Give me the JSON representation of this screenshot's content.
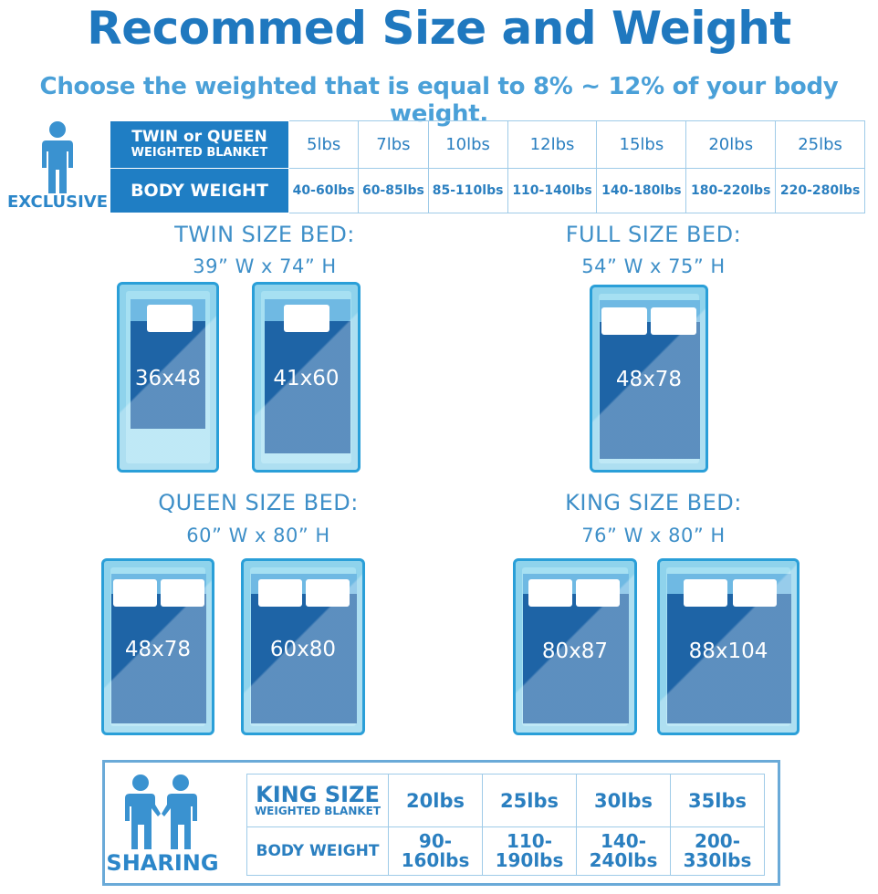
{
  "title": "Recommed Size and Weight",
  "subtitle": "Choose the weighted that is equal to 8% ~ 12% of your body weight.",
  "exclusive": {
    "label": "EXCLUSIVE",
    "header_line1": "TWIN or QUEEN",
    "header_line2": "WEIGHTED BLANKET",
    "body_weight_label": "BODY WEIGHT",
    "weights": [
      "5lbs",
      "7lbs",
      "10lbs",
      "12lbs",
      "15lbs",
      "20lbs",
      "25lbs"
    ],
    "body_weights": [
      "40-60lbs",
      "60-85lbs",
      "85-110lbs",
      "110-140lbs",
      "140-180lbs",
      "180-220lbs",
      "220-280lbs"
    ]
  },
  "beds": {
    "twin": {
      "heading": "TWIN SIZE BED:",
      "dimensions": "39”  W x 74”  H",
      "sizes": [
        "36x48",
        "41x60"
      ]
    },
    "full": {
      "heading": "FULL SIZE BED:",
      "dimensions": "54”  W x 75”  H",
      "sizes": [
        "48x78"
      ]
    },
    "queen": {
      "heading": "QUEEN SIZE BED:",
      "dimensions": "60”  W x 80”  H",
      "sizes": [
        "48x78",
        "60x80"
      ]
    },
    "king": {
      "heading": "KING SIZE BED:",
      "dimensions": "76”  W x 80”  H",
      "sizes": [
        "80x87",
        "88x104"
      ]
    }
  },
  "sharing": {
    "label": "SHARING",
    "header_line1": "KING SIZE",
    "header_line2": "WEIGHTED BLANKET",
    "body_weight_label": "BODY WEIGHT",
    "weights": [
      "20lbs",
      "25lbs",
      "30lbs",
      "35lbs"
    ],
    "body_weights": [
      [
        "90-",
        "160lbs"
      ],
      [
        "110-",
        "190lbs"
      ],
      [
        "140-",
        "240lbs"
      ],
      [
        "200-",
        "330lbs"
      ]
    ]
  },
  "colors": {
    "primary": "#1f78bf",
    "header_fill": "#1f7ec4",
    "blanket": "#1e64a6",
    "bed_frame": "#8fd3ec"
  },
  "icons": [
    "person-icon",
    "two-persons-icon"
  ]
}
